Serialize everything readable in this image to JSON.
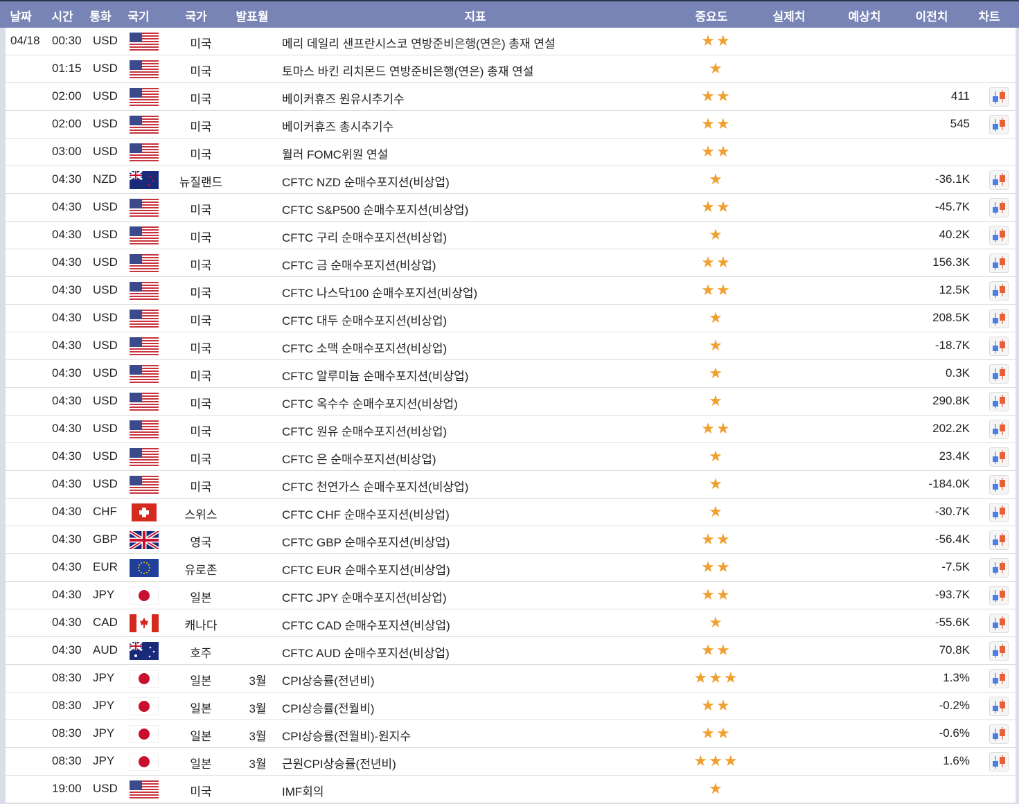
{
  "header": {
    "date": "날짜",
    "time": "시간",
    "currency": "통화",
    "flag": "국기",
    "country": "국가",
    "month": "발표월",
    "indicator": "지표",
    "importance": "중요도",
    "actual": "실제치",
    "forecast": "예상치",
    "previous": "이전치",
    "chart": "차트"
  },
  "colors": {
    "header_bg": "#7884b6",
    "star": "#f0a030"
  },
  "rows": [
    {
      "date": "04/18",
      "time": "00:30",
      "currency": "USD",
      "flag": "us",
      "country": "미국",
      "month": "",
      "indicator": "메리 데일리 샌프란시스코 연방준비은행(연은) 총재 연설",
      "stars": 2,
      "previous": "",
      "chart": false
    },
    {
      "date": "",
      "time": "01:15",
      "currency": "USD",
      "flag": "us",
      "country": "미국",
      "month": "",
      "indicator": "토마스 바킨 리치몬드 연방준비은행(연은) 총재 연설",
      "stars": 1,
      "previous": "",
      "chart": false
    },
    {
      "date": "",
      "time": "02:00",
      "currency": "USD",
      "flag": "us",
      "country": "미국",
      "month": "",
      "indicator": "베이커휴즈 원유시추기수",
      "stars": 2,
      "previous": "411",
      "chart": true
    },
    {
      "date": "",
      "time": "02:00",
      "currency": "USD",
      "flag": "us",
      "country": "미국",
      "month": "",
      "indicator": "베이커휴즈 총시추기수",
      "stars": 2,
      "previous": "545",
      "chart": true
    },
    {
      "date": "",
      "time": "03:00",
      "currency": "USD",
      "flag": "us",
      "country": "미국",
      "month": "",
      "indicator": "월러 FOMC위원 연설",
      "stars": 2,
      "previous": "",
      "chart": false
    },
    {
      "date": "",
      "time": "04:30",
      "currency": "NZD",
      "flag": "nz",
      "country": "뉴질랜드",
      "month": "",
      "indicator": "CFTC NZD 순매수포지션(비상업)",
      "stars": 1,
      "previous": "-36.1K",
      "chart": true
    },
    {
      "date": "",
      "time": "04:30",
      "currency": "USD",
      "flag": "us",
      "country": "미국",
      "month": "",
      "indicator": "CFTC S&P500 순매수포지션(비상업)",
      "stars": 2,
      "previous": "-45.7K",
      "chart": true
    },
    {
      "date": "",
      "time": "04:30",
      "currency": "USD",
      "flag": "us",
      "country": "미국",
      "month": "",
      "indicator": "CFTC 구리 순매수포지션(비상업)",
      "stars": 1,
      "previous": "40.2K",
      "chart": true
    },
    {
      "date": "",
      "time": "04:30",
      "currency": "USD",
      "flag": "us",
      "country": "미국",
      "month": "",
      "indicator": "CFTC 금 순매수포지션(비상업)",
      "stars": 2,
      "previous": "156.3K",
      "chart": true
    },
    {
      "date": "",
      "time": "04:30",
      "currency": "USD",
      "flag": "us",
      "country": "미국",
      "month": "",
      "indicator": "CFTC 나스닥100 순매수포지션(비상업)",
      "stars": 2,
      "previous": "12.5K",
      "chart": true
    },
    {
      "date": "",
      "time": "04:30",
      "currency": "USD",
      "flag": "us",
      "country": "미국",
      "month": "",
      "indicator": "CFTC 대두 순매수포지션(비상업)",
      "stars": 1,
      "previous": "208.5K",
      "chart": true
    },
    {
      "date": "",
      "time": "04:30",
      "currency": "USD",
      "flag": "us",
      "country": "미국",
      "month": "",
      "indicator": "CFTC 소맥 순매수포지션(비상업)",
      "stars": 1,
      "previous": "-18.7K",
      "chart": true
    },
    {
      "date": "",
      "time": "04:30",
      "currency": "USD",
      "flag": "us",
      "country": "미국",
      "month": "",
      "indicator": "CFTC 알루미늄 순매수포지션(비상업)",
      "stars": 1,
      "previous": "0.3K",
      "chart": true
    },
    {
      "date": "",
      "time": "04:30",
      "currency": "USD",
      "flag": "us",
      "country": "미국",
      "month": "",
      "indicator": "CFTC 옥수수 순매수포지션(비상업)",
      "stars": 1,
      "previous": "290.8K",
      "chart": true
    },
    {
      "date": "",
      "time": "04:30",
      "currency": "USD",
      "flag": "us",
      "country": "미국",
      "month": "",
      "indicator": "CFTC 원유 순매수포지션(비상업)",
      "stars": 2,
      "previous": "202.2K",
      "chart": true
    },
    {
      "date": "",
      "time": "04:30",
      "currency": "USD",
      "flag": "us",
      "country": "미국",
      "month": "",
      "indicator": "CFTC 은 순매수포지션(비상업)",
      "stars": 1,
      "previous": "23.4K",
      "chart": true
    },
    {
      "date": "",
      "time": "04:30",
      "currency": "USD",
      "flag": "us",
      "country": "미국",
      "month": "",
      "indicator": "CFTC 천연가스 순매수포지션(비상업)",
      "stars": 1,
      "previous": "-184.0K",
      "chart": true
    },
    {
      "date": "",
      "time": "04:30",
      "currency": "CHF",
      "flag": "ch",
      "country": "스위스",
      "month": "",
      "indicator": "CFTC CHF 순매수포지션(비상업)",
      "stars": 1,
      "previous": "-30.7K",
      "chart": true
    },
    {
      "date": "",
      "time": "04:30",
      "currency": "GBP",
      "flag": "gb",
      "country": "영국",
      "month": "",
      "indicator": "CFTC GBP 순매수포지션(비상업)",
      "stars": 2,
      "previous": "-56.4K",
      "chart": true
    },
    {
      "date": "",
      "time": "04:30",
      "currency": "EUR",
      "flag": "eu",
      "country": "유로존",
      "month": "",
      "indicator": "CFTC EUR 순매수포지션(비상업)",
      "stars": 2,
      "previous": "-7.5K",
      "chart": true
    },
    {
      "date": "",
      "time": "04:30",
      "currency": "JPY",
      "flag": "jp",
      "country": "일본",
      "month": "",
      "indicator": "CFTC JPY 순매수포지션(비상업)",
      "stars": 2,
      "previous": "-93.7K",
      "chart": true
    },
    {
      "date": "",
      "time": "04:30",
      "currency": "CAD",
      "flag": "ca",
      "country": "캐나다",
      "month": "",
      "indicator": "CFTC CAD 순매수포지션(비상업)",
      "stars": 1,
      "previous": "-55.6K",
      "chart": true
    },
    {
      "date": "",
      "time": "04:30",
      "currency": "AUD",
      "flag": "au",
      "country": "호주",
      "month": "",
      "indicator": "CFTC AUD 순매수포지션(비상업)",
      "stars": 2,
      "previous": "70.8K",
      "chart": true
    },
    {
      "date": "",
      "time": "08:30",
      "currency": "JPY",
      "flag": "jp",
      "country": "일본",
      "month": "3월",
      "indicator": "CPI상승률(전년비)",
      "stars": 3,
      "previous": "1.3%",
      "chart": true
    },
    {
      "date": "",
      "time": "08:30",
      "currency": "JPY",
      "flag": "jp",
      "country": "일본",
      "month": "3월",
      "indicator": "CPI상승률(전월비)",
      "stars": 2,
      "previous": "-0.2%",
      "chart": true
    },
    {
      "date": "",
      "time": "08:30",
      "currency": "JPY",
      "flag": "jp",
      "country": "일본",
      "month": "3월",
      "indicator": "CPI상승률(전월비)-원지수",
      "stars": 2,
      "previous": "-0.6%",
      "chart": true
    },
    {
      "date": "",
      "time": "08:30",
      "currency": "JPY",
      "flag": "jp",
      "country": "일본",
      "month": "3월",
      "indicator": "근원CPI상승률(전년비)",
      "stars": 3,
      "previous": "1.6%",
      "chart": true
    },
    {
      "date": "",
      "time": "19:00",
      "currency": "USD",
      "flag": "us",
      "country": "미국",
      "month": "",
      "indicator": "IMF회의",
      "stars": 1,
      "previous": "",
      "chart": false
    }
  ]
}
